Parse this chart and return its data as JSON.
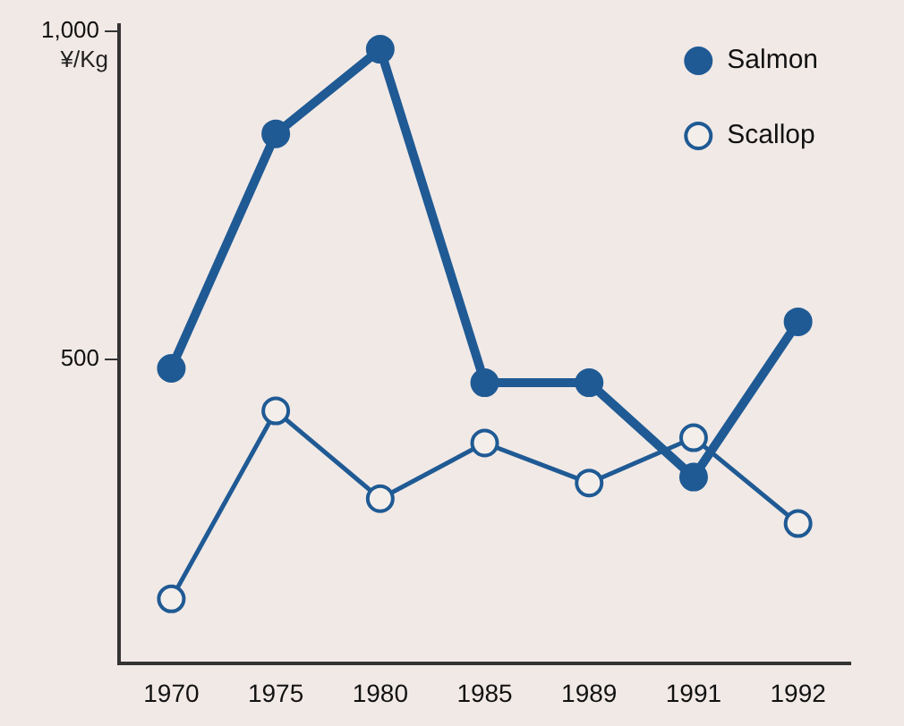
{
  "chart_data": {
    "type": "line",
    "ylabel": "¥/Kg",
    "categories": [
      "1970",
      "1975",
      "1980",
      "1985",
      "1989",
      "1991",
      "1992"
    ],
    "series": [
      {
        "name": "Salmon",
        "color": "#1f5a94",
        "values": [
          486,
          844,
          973,
          464,
          464,
          320,
          557
        ]
      },
      {
        "name": "Scallop",
        "color": "#1f5a94",
        "values": [
          134,
          421,
          287,
          372,
          311,
          380,
          249
        ]
      }
    ],
    "ylim": [
      35,
      1010
    ],
    "yticks": [
      500,
      {
        "value": 1000,
        "label": "1,000"
      }
    ],
    "grid": false,
    "legend": "top right",
    "marker": "circle",
    "line_style": "solid"
  }
}
